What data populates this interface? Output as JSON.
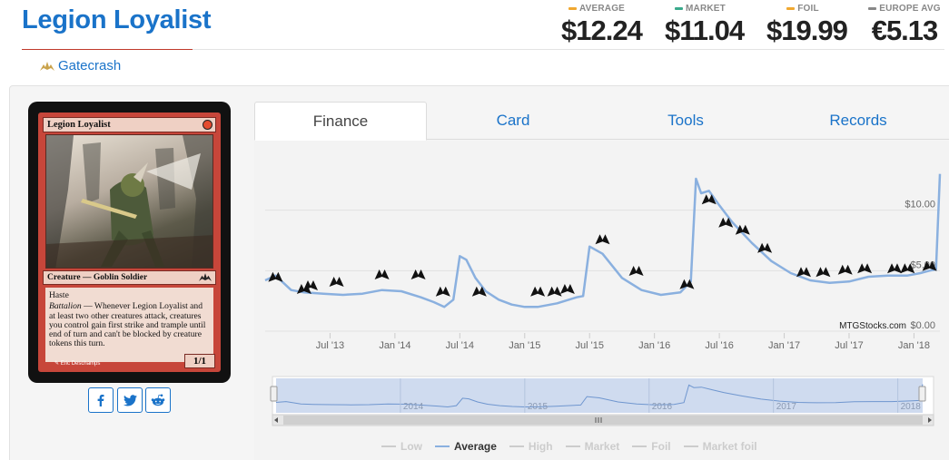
{
  "card": {
    "title": "Legion Loyalist",
    "set_name": "Gatecrash",
    "name_line": "Legion Loyalist",
    "type_line": "Creature — Goblin Soldier",
    "rules_keyword": "Haste",
    "rules_ability_word": "Battalion",
    "rules_text": " — Whenever Legion Loyalist and at least two other creatures attack, creatures you control gain first strike and trample until end of turn and can't be blocked by creature tokens this turn.",
    "artist": "Eric Deschamps",
    "power_toughness": "1/1"
  },
  "prices": [
    {
      "label": "AVERAGE",
      "value": "$12.24",
      "color": "#f0a830"
    },
    {
      "label": "MARKET",
      "value": "$11.04",
      "color": "#3aaa8c"
    },
    {
      "label": "FOIL",
      "value": "$19.99",
      "color": "#f0a830"
    },
    {
      "label": "EUROPE AVG",
      "value": "€5.13",
      "color": "#888888"
    }
  ],
  "tabs": [
    {
      "label": "Finance",
      "active": true
    },
    {
      "label": "Card",
      "active": false
    },
    {
      "label": "Tools",
      "active": false
    },
    {
      "label": "Records",
      "active": false
    }
  ],
  "social": [
    "facebook-icon",
    "twitter-icon",
    "reddit-icon"
  ],
  "chart_data": {
    "type": "line",
    "x_ticks": [
      "Jul '13",
      "Jan '14",
      "Jul '14",
      "Jan '15",
      "Jul '15",
      "Jan '16",
      "Jul '16",
      "Jan '17",
      "Jul '17",
      "Jan '18"
    ],
    "y_ticks": [
      "$10.00",
      "$5.00",
      "$0.00"
    ],
    "ylim": [
      0,
      15
    ],
    "credit": "MTGStocks.com",
    "navigator_ticks": [
      "2014",
      "2015",
      "2016",
      "2017",
      "2018"
    ],
    "series": [
      {
        "name": "Average",
        "color": "#8ab0df",
        "x": [
          2013.0,
          2013.08,
          2013.2,
          2013.3,
          2013.45,
          2013.6,
          2013.75,
          2013.9,
          2014.05,
          2014.2,
          2014.3,
          2014.38,
          2014.45,
          2014.5,
          2014.55,
          2014.62,
          2014.7,
          2014.8,
          2014.9,
          2015.0,
          2015.1,
          2015.25,
          2015.4,
          2015.45,
          2015.5,
          2015.6,
          2015.75,
          2015.9,
          2016.05,
          2016.2,
          2016.28,
          2016.32,
          2016.36,
          2016.42,
          2016.5,
          2016.6,
          2016.75,
          2016.9,
          2017.05,
          2017.2,
          2017.35,
          2017.5,
          2017.65,
          2017.8,
          2017.95,
          2018.05,
          2018.12,
          2018.17,
          2018.2
        ],
        "values": [
          4.2,
          4.6,
          3.4,
          3.2,
          3.1,
          3.0,
          3.1,
          3.4,
          3.3,
          2.8,
          2.4,
          2.0,
          2.6,
          6.2,
          5.9,
          4.4,
          3.3,
          2.6,
          2.2,
          2.0,
          2.0,
          2.3,
          2.8,
          2.9,
          7.0,
          6.4,
          4.4,
          3.4,
          3.0,
          3.2,
          4.1,
          12.6,
          11.4,
          11.6,
          10.4,
          9.0,
          7.3,
          5.8,
          4.8,
          4.2,
          4.0,
          4.1,
          4.5,
          4.6,
          4.6,
          4.8,
          5.0,
          5.1,
          13.0
        ]
      },
      {
        "name": "Low",
        "values": []
      },
      {
        "name": "High",
        "values": []
      },
      {
        "name": "Market",
        "values": []
      },
      {
        "name": "Foil",
        "values": []
      },
      {
        "name": "Market foil",
        "values": []
      }
    ],
    "legend_active": "Average",
    "grid": true
  }
}
